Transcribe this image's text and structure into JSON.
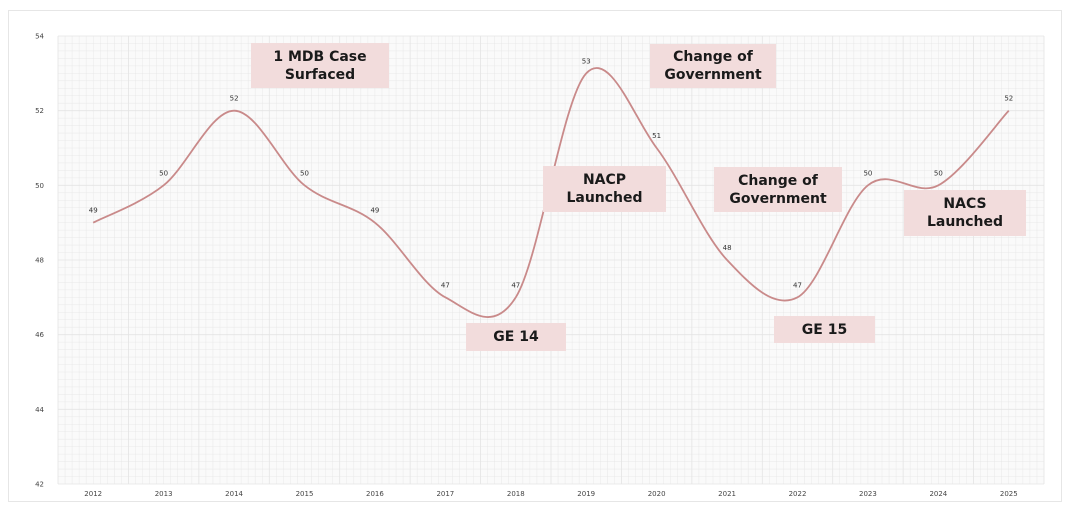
{
  "chart_data": {
    "type": "line",
    "smooth": true,
    "categories": [
      "2012",
      "2013",
      "2014",
      "2015",
      "2016",
      "2017",
      "2018",
      "2019",
      "2020",
      "2021",
      "2022",
      "2023",
      "2024",
      "2025"
    ],
    "series": [
      {
        "values": [
          49,
          50,
          52,
          50,
          49,
          47,
          47,
          53,
          51,
          48,
          47,
          50,
          50,
          52
        ]
      }
    ],
    "data_labels": [
      "49",
      "50",
      "52",
      "50",
      "49",
      "47",
      "47",
      "53",
      "51",
      "48",
      "47",
      "50",
      "50",
      "52"
    ],
    "y_ticks": [
      "42",
      "44",
      "46",
      "48",
      "50",
      "52",
      "54"
    ],
    "ylim": [
      42,
      54
    ],
    "grid": true,
    "line_color": "#c98a8a",
    "grid_color": "#e4e4e4",
    "annotation_color": "#f2dcdc",
    "annotations": [
      {
        "text": "1 MDB Case\nSurfaced"
      },
      {
        "text": "GE 14"
      },
      {
        "text": "NACP\nLaunched"
      },
      {
        "text": "Change of\nGovernment"
      },
      {
        "text": "Change of\nGovernment"
      },
      {
        "text": "GE 15"
      },
      {
        "text": "NACS\nLaunched"
      }
    ]
  }
}
